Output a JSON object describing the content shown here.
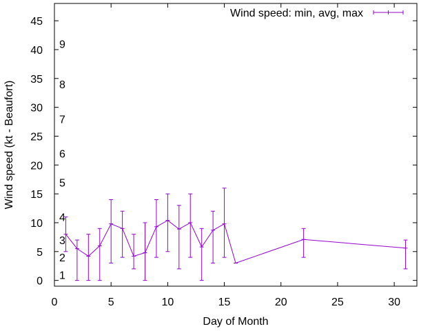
{
  "chart_data": {
    "type": "errorbar-line",
    "xlabel": "Day of Month",
    "ylabel": "Wind speed (kt - Beaufort)",
    "xlim": [
      0,
      32
    ],
    "ylim": [
      -1,
      48
    ],
    "x_ticks": [
      0,
      5,
      10,
      15,
      20,
      25,
      30
    ],
    "y_ticks": [
      0,
      5,
      10,
      15,
      20,
      25,
      30,
      35,
      40,
      45
    ],
    "beaufort_labels": [
      {
        "label": "1",
        "value": 1
      },
      {
        "label": "2",
        "value": 4
      },
      {
        "label": "3",
        "value": 7
      },
      {
        "label": "4",
        "value": 11
      },
      {
        "label": "5",
        "value": 17
      },
      {
        "label": "6",
        "value": 22
      },
      {
        "label": "7",
        "value": 28
      },
      {
        "label": "8",
        "value": 34
      },
      {
        "label": "9",
        "value": 41
      }
    ],
    "legend_position": "top-right",
    "series": [
      {
        "name": "Wind speed: min, avg, max",
        "color": "#9400d3",
        "points": [
          {
            "x": 1,
            "avg": 8,
            "min": 5,
            "max": 11
          },
          {
            "x": 2,
            "avg": 5.5,
            "min": 0,
            "max": 7
          },
          {
            "x": 3,
            "avg": 4.2,
            "min": 0,
            "max": 8
          },
          {
            "x": 4,
            "avg": 6,
            "min": 0,
            "max": 9
          },
          {
            "x": 5,
            "avg": 9.8,
            "min": 3,
            "max": 14
          },
          {
            "x": 6,
            "avg": 9,
            "min": 4,
            "max": 12
          },
          {
            "x": 7,
            "avg": 4.2,
            "min": 2,
            "max": 8
          },
          {
            "x": 8,
            "avg": 4.8,
            "min": 0,
            "max": 10
          },
          {
            "x": 9,
            "avg": 9.3,
            "min": 4,
            "max": 14
          },
          {
            "x": 10,
            "avg": 10.4,
            "min": 5,
            "max": 15
          },
          {
            "x": 11,
            "avg": 8.9,
            "min": 2,
            "max": 13
          },
          {
            "x": 12,
            "avg": 10,
            "min": 4,
            "max": 15
          },
          {
            "x": 13,
            "avg": 5.8,
            "min": 0,
            "max": 9
          },
          {
            "x": 14,
            "avg": 8.7,
            "min": 3,
            "max": 12
          },
          {
            "x": 15,
            "avg": 9.8,
            "min": 4,
            "max": 16
          },
          {
            "x": 16,
            "avg": 3,
            "min": 3,
            "max": 3
          },
          {
            "x": 22,
            "avg": 7.1,
            "min": 4,
            "max": 9
          },
          {
            "x": 31,
            "avg": 5.6,
            "min": 2,
            "max": 7
          }
        ]
      }
    ]
  }
}
